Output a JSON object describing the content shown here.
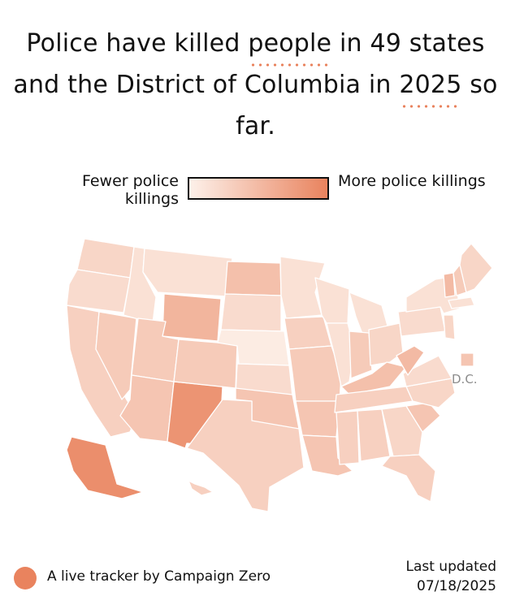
{
  "headline": {
    "part1": "Police have killed ",
    "link1": "people",
    "part2": " in 49 states and the District of Columbia in ",
    "link2": "2025",
    "part3": " so far."
  },
  "legend": {
    "low_label": "Fewer police killings",
    "high_label": "More police killings",
    "color_low": "#fdf1ea",
    "color_high": "#e9835e"
  },
  "map": {
    "dc_label": "D.C.",
    "state_shading": {
      "WA": 0.25,
      "OR": 0.2,
      "CA": 0.3,
      "NV": 0.35,
      "ID": 0.15,
      "MT": 0.15,
      "WY": 0.55,
      "UT": 0.35,
      "AZ": 0.4,
      "NM": 0.85,
      "CO": 0.35,
      "ND": 0.45,
      "SD": 0.2,
      "NE": 0.05,
      "KS": 0.2,
      "OK": 0.4,
      "TX": 0.3,
      "MN": 0.15,
      "IA": 0.3,
      "MO": 0.35,
      "AR": 0.4,
      "LA": 0.4,
      "WI": 0.15,
      "IL": 0.15,
      "MI": 0.15,
      "IN": 0.35,
      "OH": 0.25,
      "KY": 0.45,
      "TN": 0.3,
      "MS": 0.3,
      "AL": 0.3,
      "GA": 0.25,
      "FL": 0.3,
      "SC": 0.4,
      "NC": 0.25,
      "VA": 0.2,
      "WV": 0.5,
      "PA": 0.2,
      "NY": 0.15,
      "VT": 0.5,
      "NH": 0.35,
      "ME": 0.25,
      "MA": 0.15,
      "NJ": 0.25,
      "AK": 0.9,
      "HI": 0.3,
      "DC": 0.4
    }
  },
  "footer": {
    "tracker_label": "A live tracker by Campaign Zero",
    "updated_label": "Last updated",
    "updated_date": "07/18/2025",
    "accent_color": "#e9835e"
  }
}
